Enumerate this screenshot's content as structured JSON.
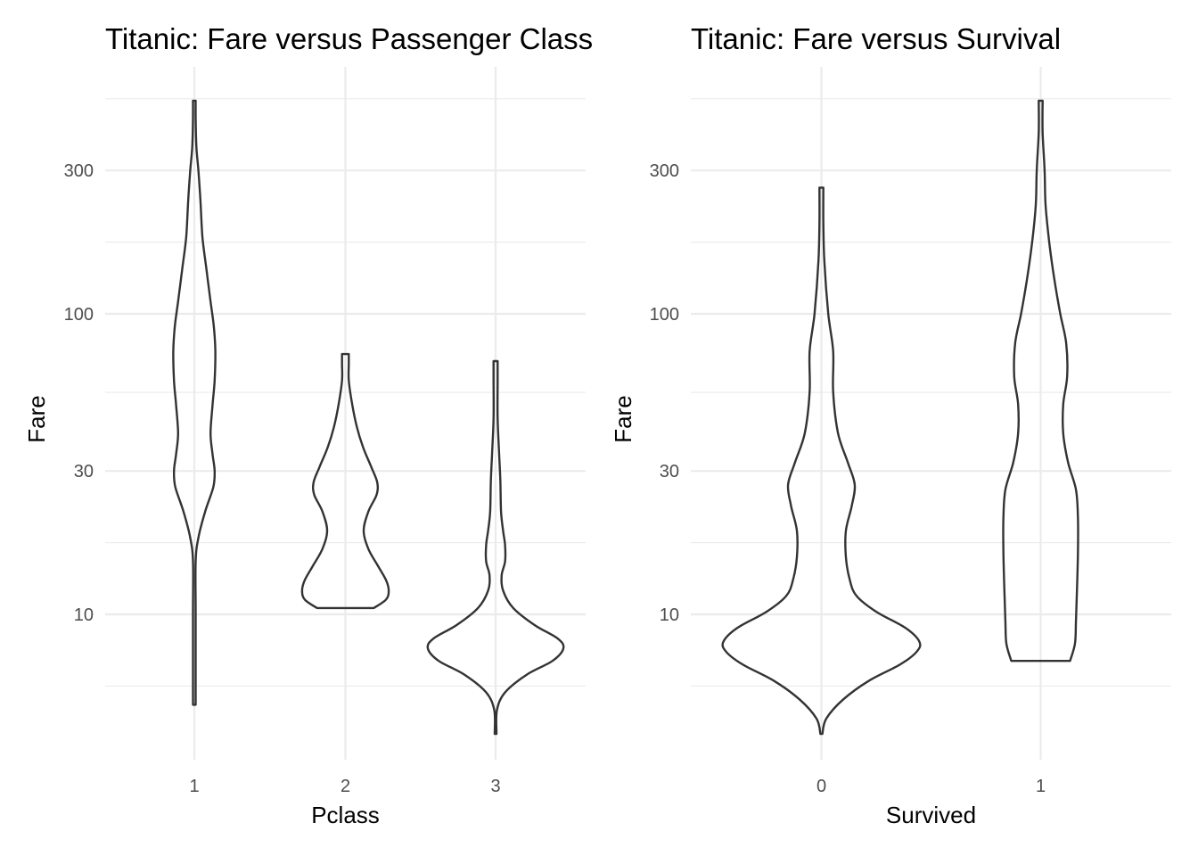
{
  "chart_data": [
    {
      "type": "violin",
      "title": "Titanic: Fare versus Passenger Class",
      "xlabel": "Pclass",
      "ylabel": "Fare",
      "yscale": "log10",
      "yticks": [
        10,
        30,
        100,
        300
      ],
      "ytick_labels": [
        "10",
        "30",
        "100",
        "300"
      ],
      "categories": [
        "1",
        "2",
        "3"
      ],
      "grid": true,
      "series": [
        {
          "category": "1",
          "min": 5.0,
          "max": 512.3,
          "profile": [
            {
              "y": 5.0,
              "w": 0.02
            },
            {
              "y": 10,
              "w": 0.02
            },
            {
              "y": 15,
              "w": 0.02
            },
            {
              "y": 18,
              "w": 0.06
            },
            {
              "y": 22,
              "w": 0.16
            },
            {
              "y": 26.5,
              "w": 0.28
            },
            {
              "y": 30,
              "w": 0.3
            },
            {
              "y": 34,
              "w": 0.27
            },
            {
              "y": 40,
              "w": 0.24
            },
            {
              "y": 50,
              "w": 0.27
            },
            {
              "y": 60,
              "w": 0.3
            },
            {
              "y": 75,
              "w": 0.31
            },
            {
              "y": 90,
              "w": 0.29
            },
            {
              "y": 110,
              "w": 0.24
            },
            {
              "y": 140,
              "w": 0.18
            },
            {
              "y": 180,
              "w": 0.12
            },
            {
              "y": 240,
              "w": 0.09
            },
            {
              "y": 300,
              "w": 0.06
            },
            {
              "y": 360,
              "w": 0.03
            },
            {
              "y": 450,
              "w": 0.02
            },
            {
              "y": 512.3,
              "w": 0.02
            }
          ]
        },
        {
          "category": "2",
          "min": 10.5,
          "max": 73.5,
          "profile": [
            {
              "y": 10.5,
              "w": 0.42
            },
            {
              "y": 11.2,
              "w": 0.6
            },
            {
              "y": 12,
              "w": 0.64
            },
            {
              "y": 13,
              "w": 0.6
            },
            {
              "y": 14.5,
              "w": 0.48
            },
            {
              "y": 16.5,
              "w": 0.34
            },
            {
              "y": 19,
              "w": 0.27
            },
            {
              "y": 22,
              "w": 0.34
            },
            {
              "y": 25,
              "w": 0.46
            },
            {
              "y": 27.5,
              "w": 0.47
            },
            {
              "y": 31,
              "w": 0.38
            },
            {
              "y": 36,
              "w": 0.26
            },
            {
              "y": 42,
              "w": 0.17
            },
            {
              "y": 50,
              "w": 0.1
            },
            {
              "y": 60,
              "w": 0.05
            },
            {
              "y": 68,
              "w": 0.05
            },
            {
              "y": 73.5,
              "w": 0.05
            }
          ]
        },
        {
          "category": "3",
          "min": 4.0,
          "max": 69.6,
          "profile": [
            {
              "y": 4.0,
              "w": 0.01
            },
            {
              "y": 4.8,
              "w": 0.02
            },
            {
              "y": 5.5,
              "w": 0.14
            },
            {
              "y": 6.3,
              "w": 0.46
            },
            {
              "y": 7,
              "w": 0.84
            },
            {
              "y": 7.7,
              "w": 1.0
            },
            {
              "y": 8.3,
              "w": 0.92
            },
            {
              "y": 9.2,
              "w": 0.58
            },
            {
              "y": 10.5,
              "w": 0.26
            },
            {
              "y": 12,
              "w": 0.11
            },
            {
              "y": 13.5,
              "w": 0.09
            },
            {
              "y": 15,
              "w": 0.14
            },
            {
              "y": 17,
              "w": 0.14
            },
            {
              "y": 19,
              "w": 0.11
            },
            {
              "y": 22,
              "w": 0.08
            },
            {
              "y": 28,
              "w": 0.07
            },
            {
              "y": 35,
              "w": 0.05
            },
            {
              "y": 45,
              "w": 0.03
            },
            {
              "y": 60,
              "w": 0.03
            },
            {
              "y": 69.6,
              "w": 0.03
            }
          ]
        }
      ]
    },
    {
      "type": "violin",
      "title": "Titanic: Fare versus Survival",
      "xlabel": "Survived",
      "ylabel": "Fare",
      "yscale": "log10",
      "yticks": [
        10,
        30,
        100,
        300
      ],
      "ytick_labels": [
        "10",
        "30",
        "100",
        "300"
      ],
      "categories": [
        "0",
        "1"
      ],
      "grid": true,
      "series": [
        {
          "category": "0",
          "min": 4.0,
          "max": 263.0,
          "profile": [
            {
              "y": 4.0,
              "w": 0.01
            },
            {
              "y": 4.5,
              "w": 0.05
            },
            {
              "y": 5.2,
              "w": 0.22
            },
            {
              "y": 6,
              "w": 0.48
            },
            {
              "y": 6.8,
              "w": 0.8
            },
            {
              "y": 7.5,
              "w": 0.97
            },
            {
              "y": 8.1,
              "w": 1.0
            },
            {
              "y": 9,
              "w": 0.86
            },
            {
              "y": 10.2,
              "w": 0.56
            },
            {
              "y": 11.5,
              "w": 0.36
            },
            {
              "y": 13,
              "w": 0.29
            },
            {
              "y": 15.5,
              "w": 0.25
            },
            {
              "y": 19,
              "w": 0.25
            },
            {
              "y": 23,
              "w": 0.31
            },
            {
              "y": 27,
              "w": 0.34
            },
            {
              "y": 32,
              "w": 0.27
            },
            {
              "y": 40,
              "w": 0.17
            },
            {
              "y": 55,
              "w": 0.12
            },
            {
              "y": 75,
              "w": 0.12
            },
            {
              "y": 100,
              "w": 0.07
            },
            {
              "y": 150,
              "w": 0.03
            },
            {
              "y": 200,
              "w": 0.02
            },
            {
              "y": 263,
              "w": 0.02
            }
          ]
        },
        {
          "category": "1",
          "min": 7.0,
          "max": 512.3,
          "profile": [
            {
              "y": 7.0,
              "w": 0.3
            },
            {
              "y": 8,
              "w": 0.35
            },
            {
              "y": 9.5,
              "w": 0.36
            },
            {
              "y": 12,
              "w": 0.37
            },
            {
              "y": 16,
              "w": 0.38
            },
            {
              "y": 21,
              "w": 0.38
            },
            {
              "y": 26,
              "w": 0.36
            },
            {
              "y": 32,
              "w": 0.28
            },
            {
              "y": 40,
              "w": 0.23
            },
            {
              "y": 50,
              "w": 0.23
            },
            {
              "y": 62,
              "w": 0.27
            },
            {
              "y": 80,
              "w": 0.26
            },
            {
              "y": 100,
              "w": 0.2
            },
            {
              "y": 130,
              "w": 0.14
            },
            {
              "y": 170,
              "w": 0.09
            },
            {
              "y": 230,
              "w": 0.05
            },
            {
              "y": 300,
              "w": 0.04
            },
            {
              "y": 400,
              "w": 0.02
            },
            {
              "y": 512.3,
              "w": 0.02
            }
          ]
        }
      ]
    }
  ]
}
